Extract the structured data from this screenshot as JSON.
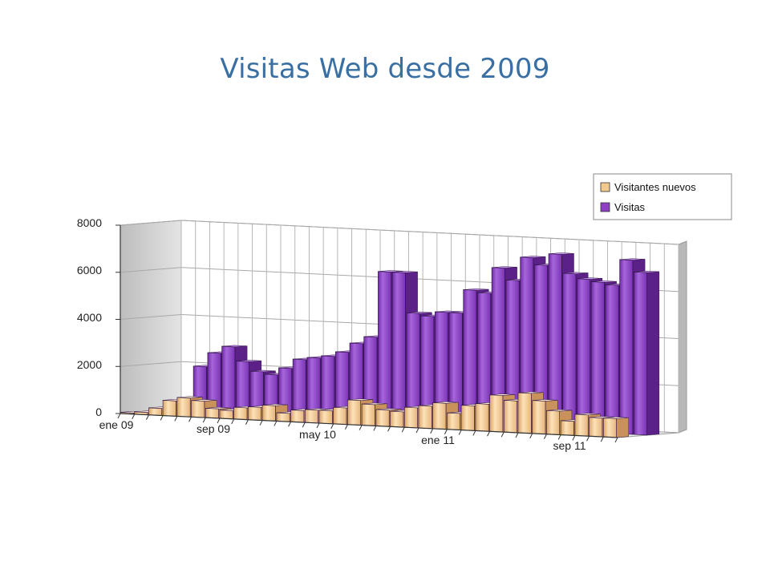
{
  "title": "Visitas Web desde 2009",
  "colors": {
    "title": "#3a6fa3",
    "visitas": "#8e3fc4",
    "nuevos": "#f3c98e"
  },
  "chart_data": {
    "type": "bar",
    "title": "Visitas Web desde 2009",
    "xlabel": "",
    "ylabel": "",
    "ylim": [
      0,
      8000
    ],
    "y_ticks": [
      "0",
      "2000",
      "4000",
      "6000",
      "8000"
    ],
    "x_tick_labels": [
      "ene 09",
      "sep 09",
      "may 10",
      "ene 11",
      "sep 11"
    ],
    "x_tick_label_months": [
      0,
      8,
      16,
      24,
      32
    ],
    "legend_position": "top-right",
    "grid": true,
    "three_d": true,
    "series": [
      {
        "name": "Visitantes nuevos",
        "color": "#f3c98e",
        "values": [
          50,
          100,
          300,
          650,
          800,
          700,
          400,
          350,
          500,
          550,
          650,
          350,
          500,
          550,
          550,
          700,
          1050,
          900,
          700,
          650,
          850,
          950,
          1100,
          700,
          1050,
          1150,
          1550,
          1350,
          1700,
          1400,
          1000,
          600,
          900,
          800,
          800
        ]
      },
      {
        "name": "Visitas",
        "color": "#8e3fc4",
        "values": [
          0,
          0,
          0,
          2000,
          2600,
          2900,
          2300,
          1900,
          1800,
          2100,
          2500,
          2600,
          2700,
          2900,
          3300,
          3600,
          6400,
          6400,
          4700,
          4600,
          4800,
          4800,
          5800,
          5700,
          6800,
          6300,
          7300,
          7000,
          7500,
          6700,
          6500,
          6400,
          6300,
          7400,
          6900
        ]
      }
    ]
  }
}
